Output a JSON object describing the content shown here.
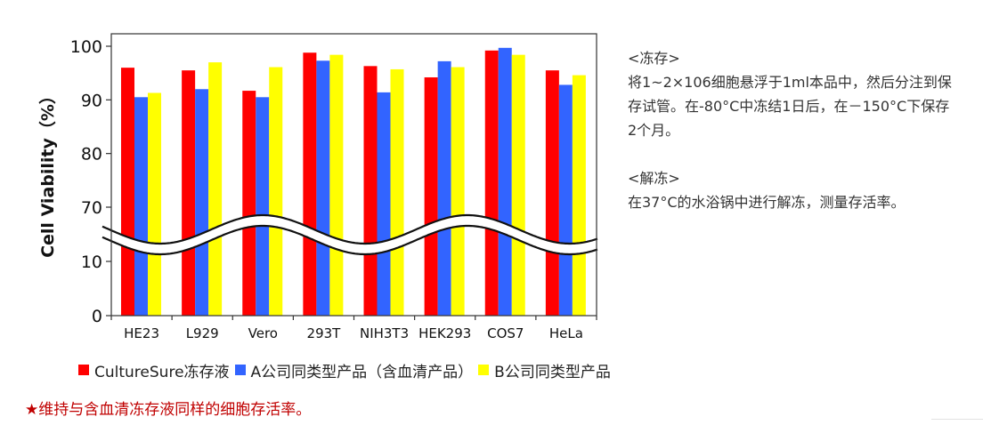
{
  "chart_data": {
    "type": "bar",
    "ylabel": "Cell Viability（%）",
    "xlabel": "",
    "categories": [
      "HE23",
      "L929",
      "Vero",
      "293T",
      "NIH3T3",
      "HEK293",
      "COS7",
      "HeLa"
    ],
    "series": [
      {
        "name": "CultureSure冻存液",
        "color": "#ff0000",
        "values": [
          96,
          95.5,
          91.7,
          98.8,
          96.3,
          94.2,
          99.2,
          95.5
        ]
      },
      {
        "name": "A公司同类型产品（含血清产品）",
        "color": "#3264ff",
        "values": [
          90.5,
          92,
          90.5,
          97.3,
          91.4,
          97.2,
          99.7,
          92.8
        ]
      },
      {
        "name": "B公司同类型产品",
        "color": "#ffff00",
        "values": [
          91.3,
          97,
          96.1,
          98.4,
          95.7,
          96.1,
          98.4,
          94.6
        ]
      }
    ],
    "yticks": [
      "100",
      "90",
      "80",
      "70",
      "10",
      "0"
    ],
    "axis_break": {
      "lower_range": [
        0,
        10
      ],
      "upper_range": [
        70,
        100
      ]
    },
    "grid": false
  },
  "notes": {
    "freeze_title": "<冻存>",
    "freeze_text": "将1~2×106细胞悬浮于1ml本品中，然后分注到保存试管。在-80°C中冻结1日后，在－150°C下保存2个月。",
    "thaw_title": "<解冻>",
    "thaw_text": "在37°C的水浴锅中进行解冻，测量存活率。"
  },
  "footnote": "★维持与含血清冻存液同样的细胞存活率。"
}
